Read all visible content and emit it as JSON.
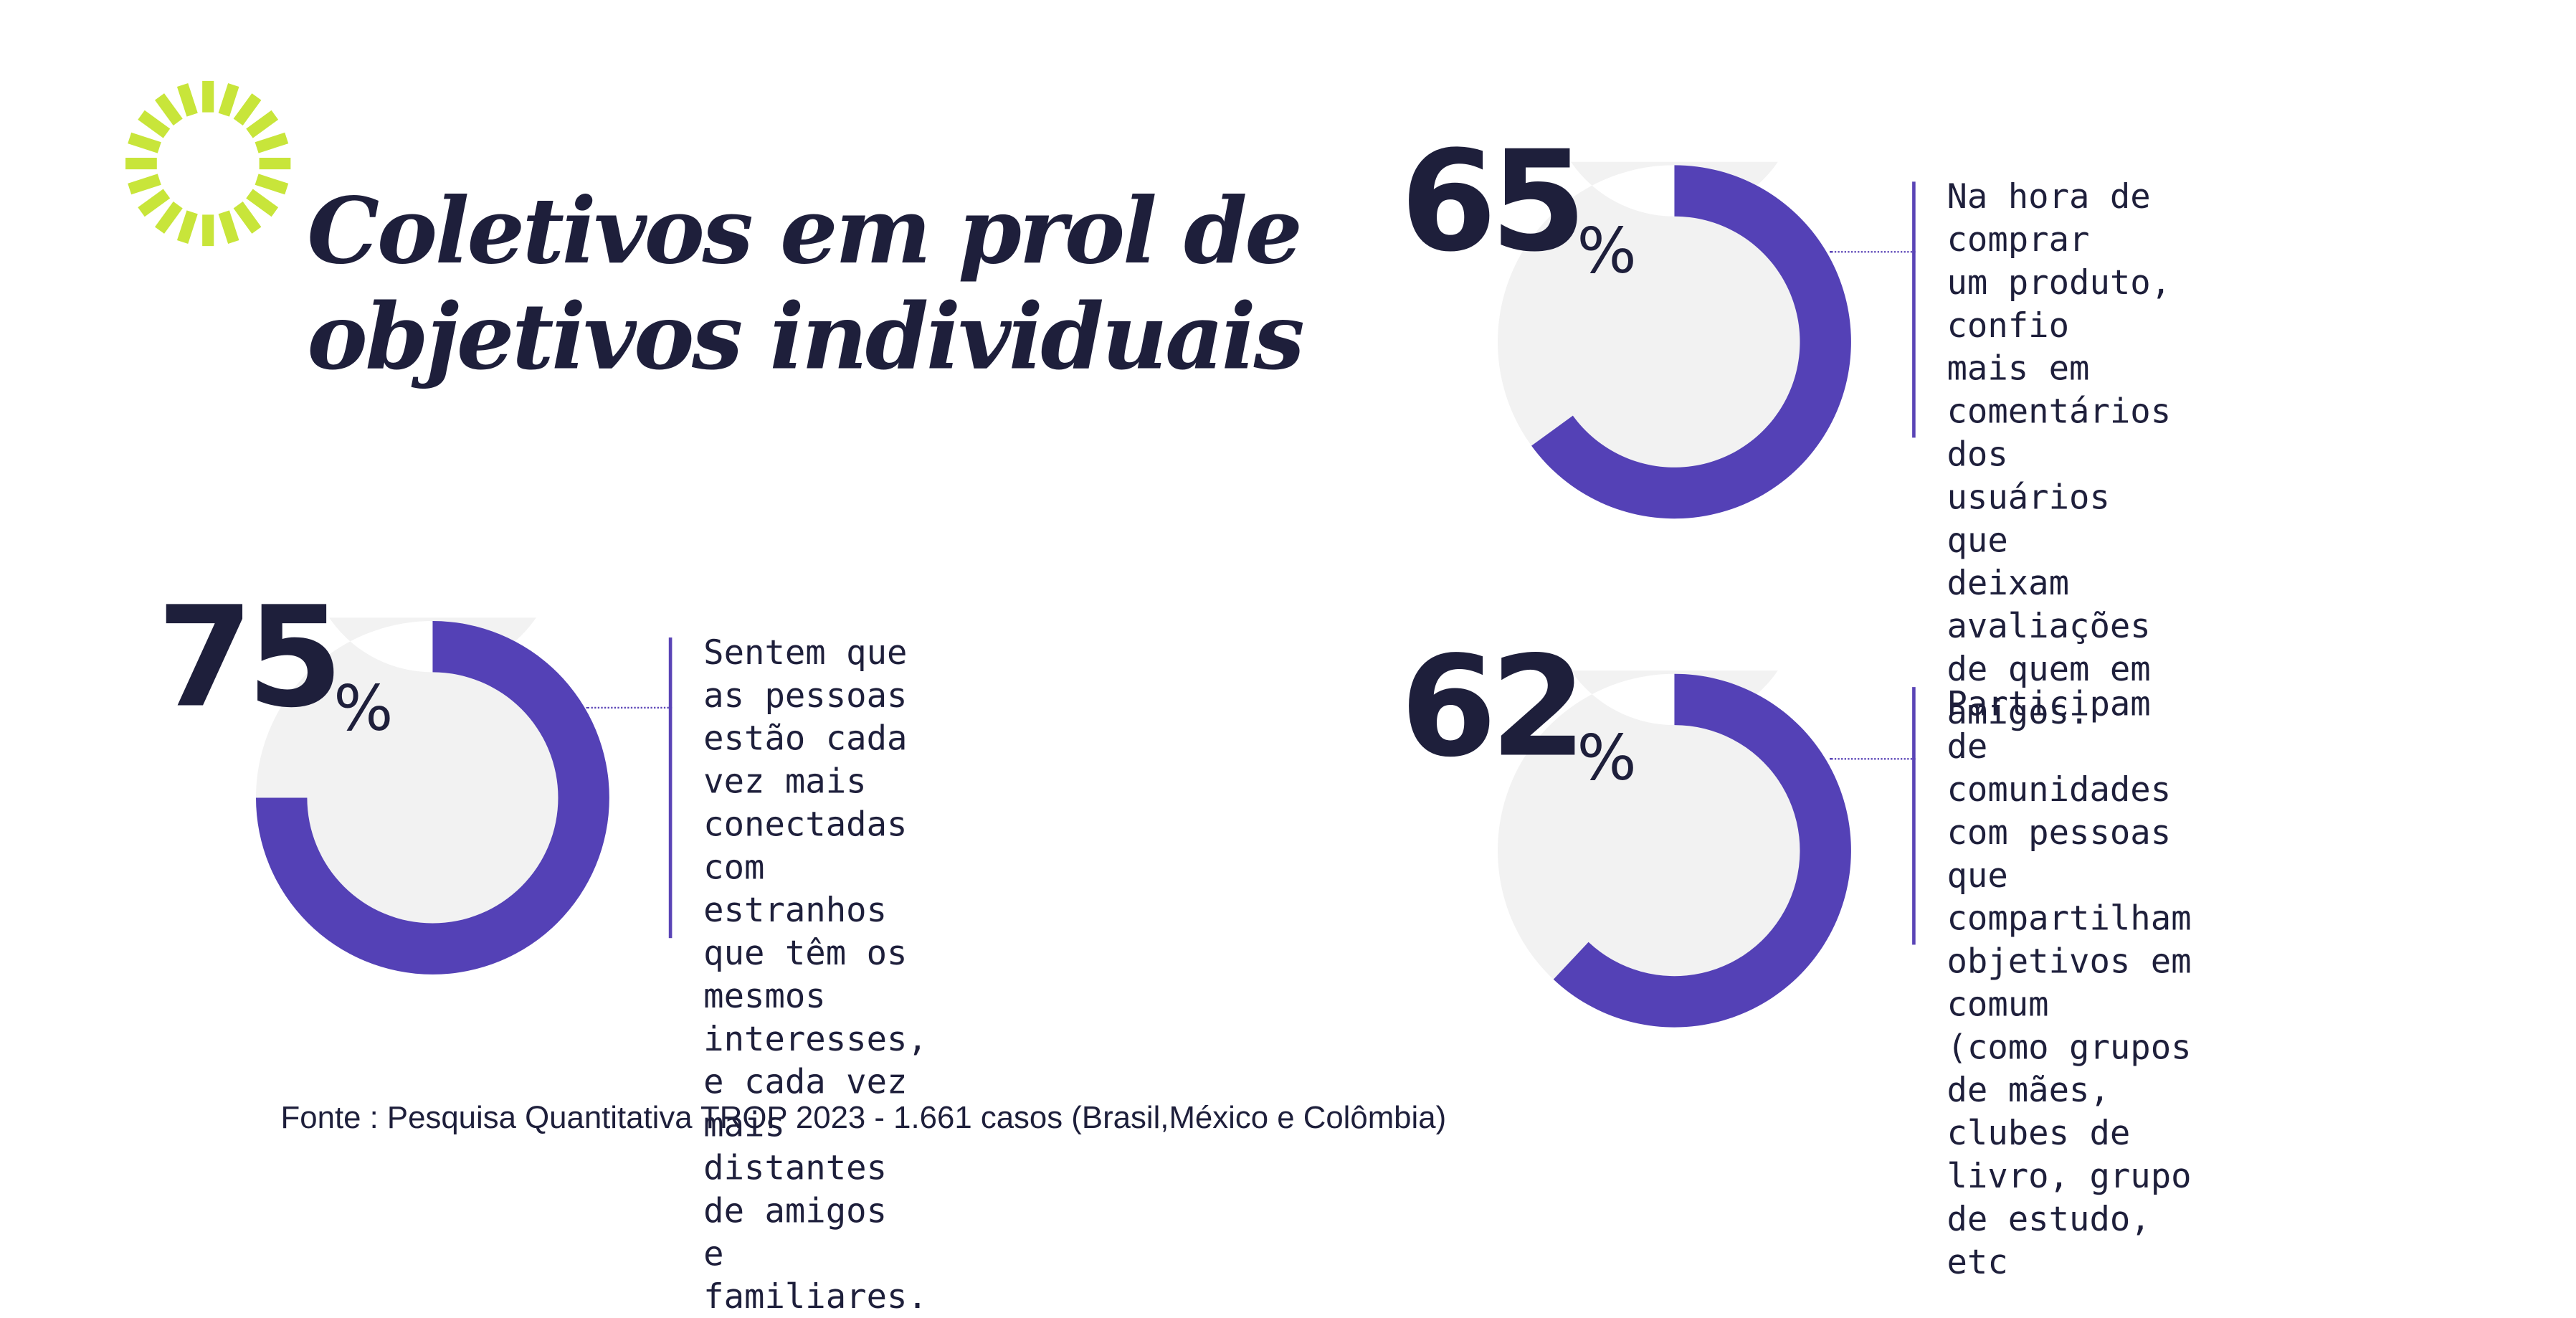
{
  "title": {
    "line1": "Coletivos em prol de",
    "line2": "objetivos individuais"
  },
  "colors": {
    "accent": "#5441b6",
    "track": "#f2f2f2",
    "text": "#1e1f3b",
    "sunburst": "#c8e53a"
  },
  "decorative_icon": "sunburst-icon",
  "chart_data": [
    {
      "type": "donut",
      "value": 65,
      "max": 100,
      "value_label": "65",
      "unit": "%",
      "description": "Na hora de comprar\num produto, confio\nmais em comentários\ndos usuários que\ndeixam avaliações\nde quem em amigos."
    },
    {
      "type": "donut",
      "value": 75,
      "max": 100,
      "value_label": "75",
      "unit": "%",
      "description": "Sentem que as pessoas\nestão cada vez mais\nconectadas com estranhos\nque têm os mesmos\ninteresses, e cada vez\nmais distantes de amigos\ne familiares."
    },
    {
      "type": "donut",
      "value": 62,
      "max": 100,
      "value_label": "62",
      "unit": "%",
      "description": "Participam de comunidades\ncom pessoas que compartilham\nobjetivos em comum\n(como grupos de mães,\nclubes de livro, grupo\nde estudo, etc"
    }
  ],
  "source": "Fonte : Pesquisa Quantitativa TROP 2023 - 1.661 casos (Brasil,México e Colômbia)"
}
